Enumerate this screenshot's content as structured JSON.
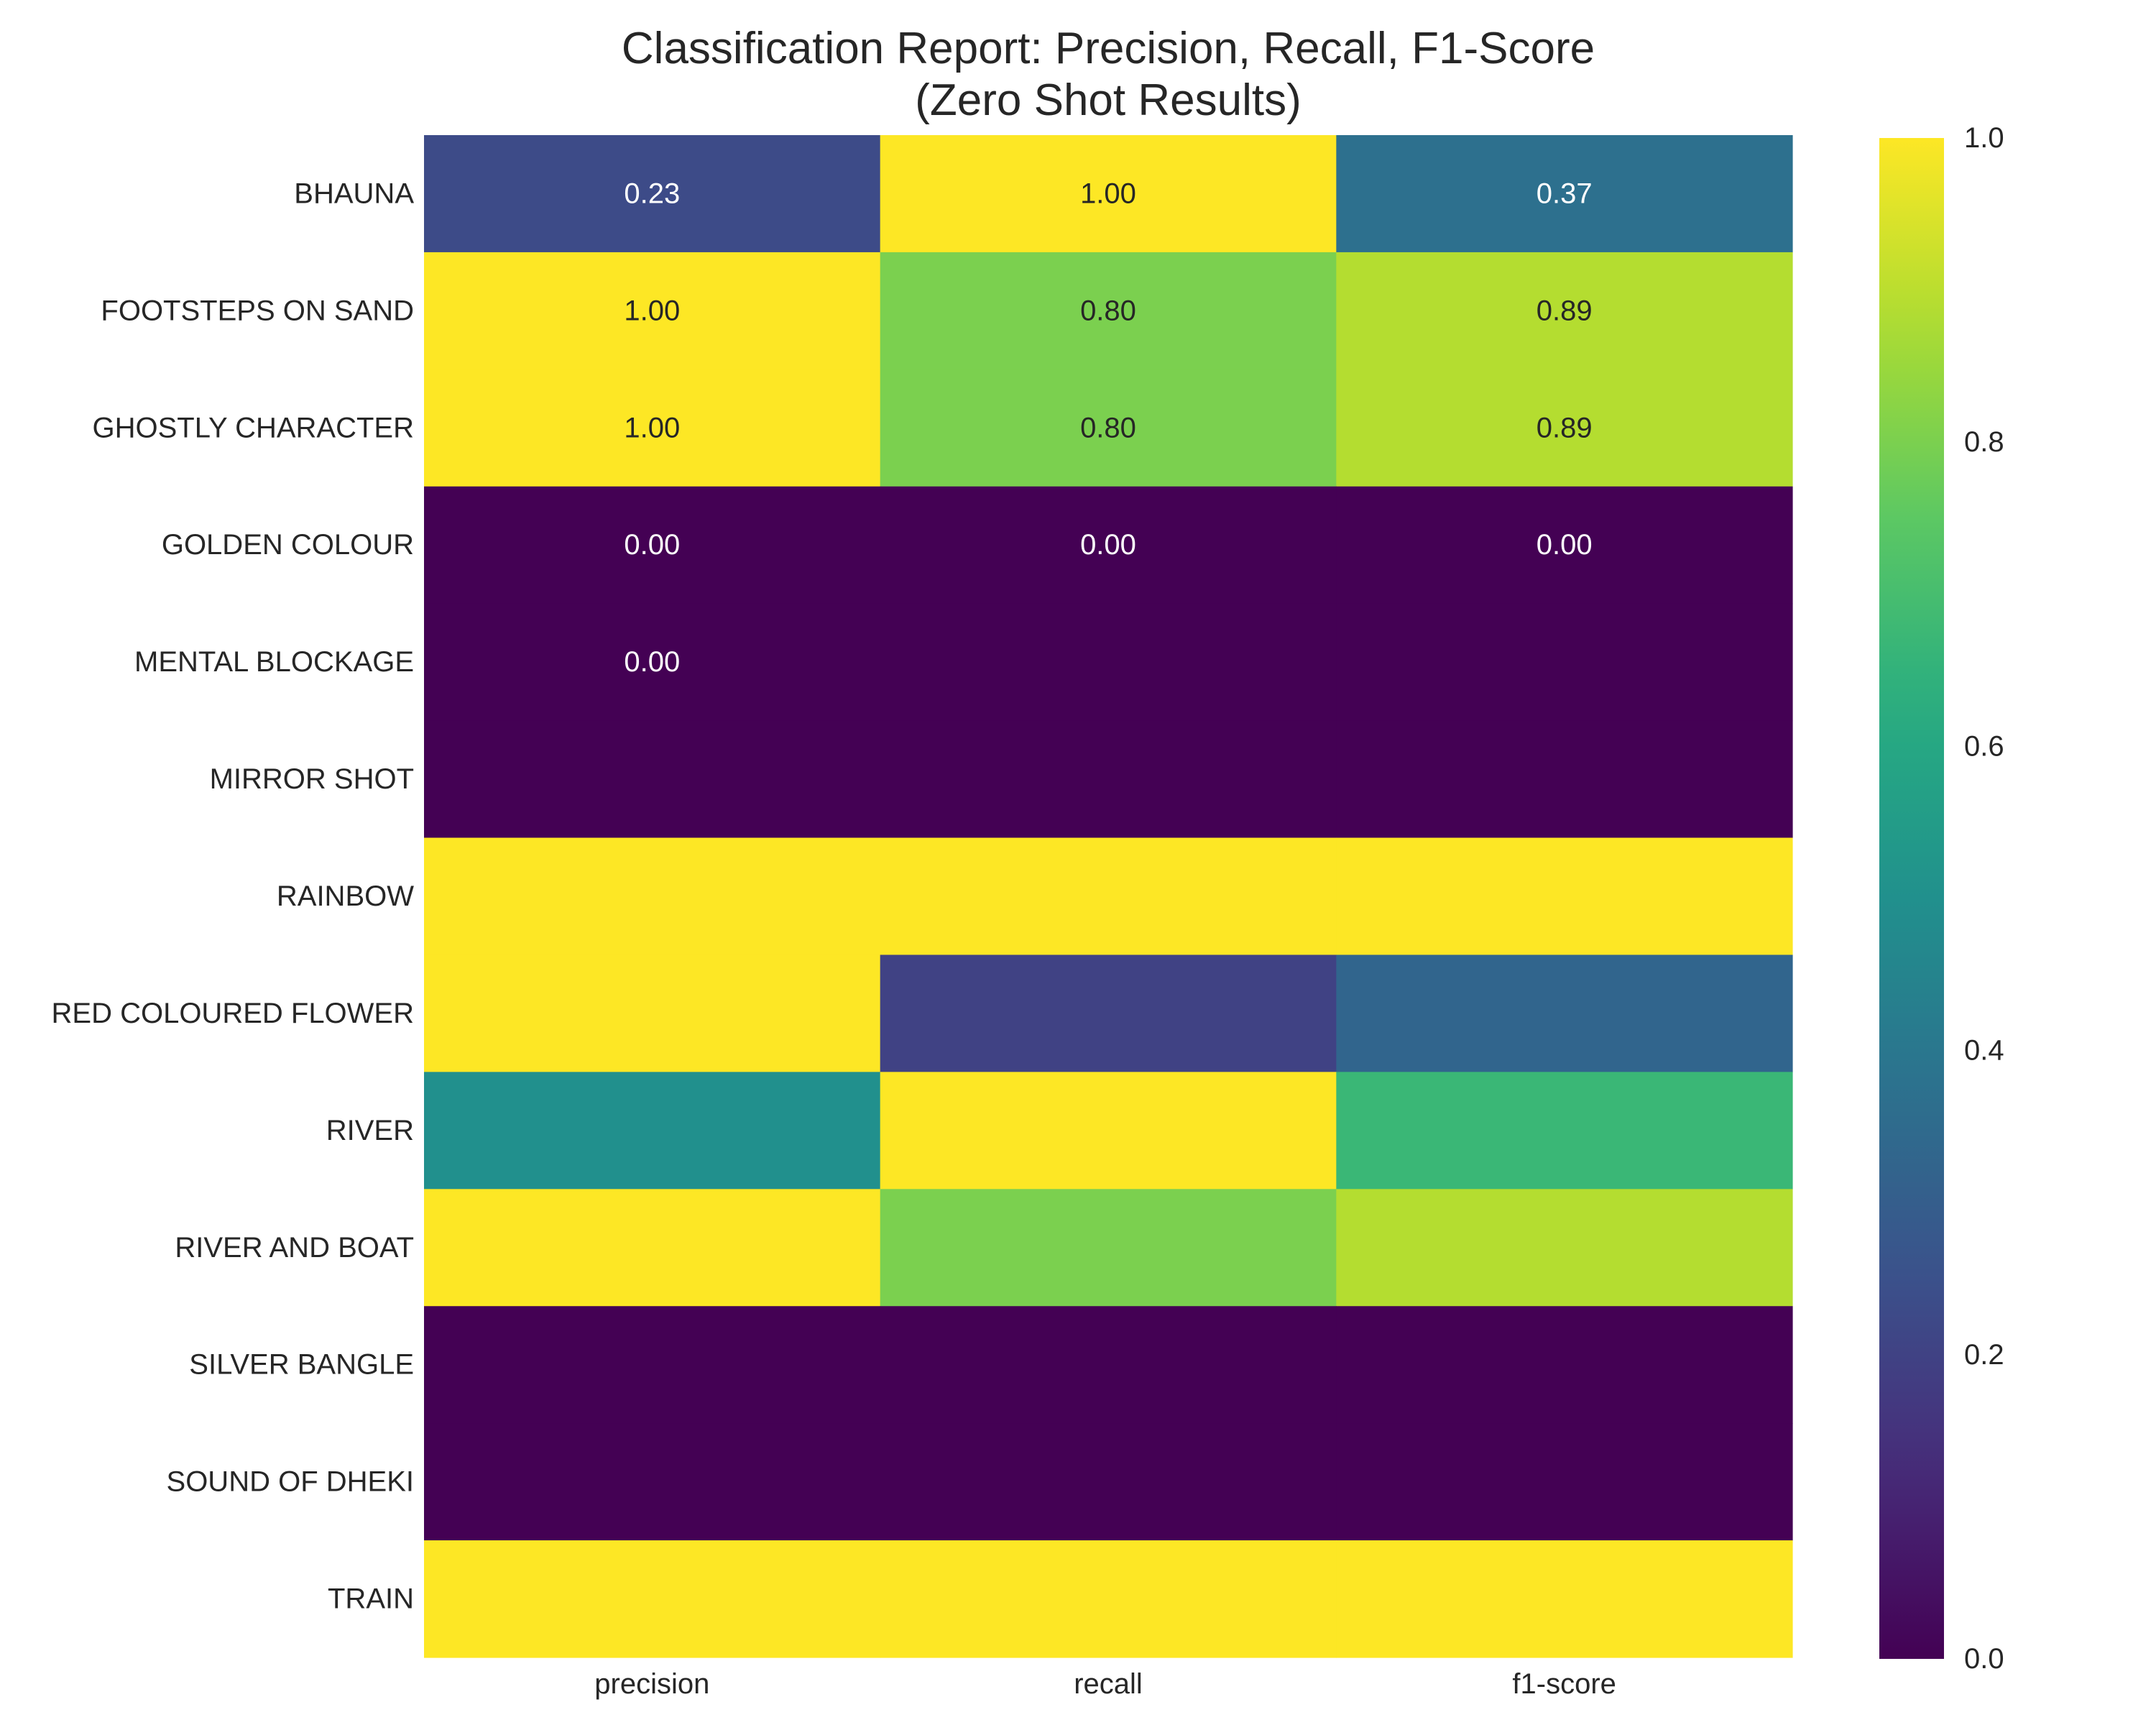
{
  "chart_data": {
    "type": "heatmap",
    "title_lines": [
      "Classification Report: Precision, Recall, F1-Score",
      "(Zero Shot Results)"
    ],
    "columns": [
      "precision",
      "recall",
      "f1-score"
    ],
    "rows": [
      "BHAUNA",
      "FOOTSTEPS ON SAND",
      "GHOSTLY CHARACTER",
      "GOLDEN COLOUR",
      "MENTAL BLOCKAGE",
      "MIRROR SHOT",
      "RAINBOW",
      "RED COLOURED FLOWER",
      "RIVER",
      "RIVER AND BOAT",
      "SILVER BANGLE",
      "SOUND OF DHEKI",
      "TRAIN"
    ],
    "values": [
      [
        0.23,
        1.0,
        0.37
      ],
      [
        1.0,
        0.8,
        0.89
      ],
      [
        1.0,
        0.8,
        0.89
      ],
      [
        0.0,
        0.0,
        0.0
      ],
      [
        0.0,
        0.0,
        0.0
      ],
      [
        0.0,
        0.0,
        0.0
      ],
      [
        1.0,
        1.0,
        1.0
      ],
      [
        1.0,
        0.2,
        0.33
      ],
      [
        0.5,
        1.0,
        0.67
      ],
      [
        1.0,
        0.8,
        0.89
      ],
      [
        0.0,
        0.0,
        0.0
      ],
      [
        0.0,
        0.0,
        0.0
      ],
      [
        1.0,
        1.0,
        1.0
      ]
    ],
    "annotations": [
      [
        "0.23",
        "1.00",
        "0.37"
      ],
      [
        "1.00",
        "0.80",
        "0.89"
      ],
      [
        "1.00",
        "0.80",
        "0.89"
      ],
      [
        "0.00",
        "0.00",
        "0.00"
      ],
      [
        "0.00",
        "",
        ""
      ],
      [
        "",
        "",
        ""
      ],
      [
        "",
        "",
        ""
      ],
      [
        "",
        "",
        ""
      ],
      [
        "",
        "",
        ""
      ],
      [
        "",
        "",
        ""
      ],
      [
        "",
        "",
        ""
      ],
      [
        "",
        "",
        ""
      ],
      [
        "",
        "",
        ""
      ]
    ],
    "colormap": "viridis",
    "vmin": 0.0,
    "vmax": 1.0,
    "colorbar_ticks": [
      "0.0",
      "0.2",
      "0.4",
      "0.6",
      "0.8",
      "1.0"
    ],
    "grid": false
  }
}
